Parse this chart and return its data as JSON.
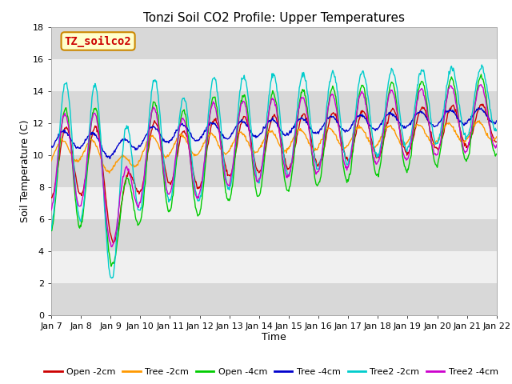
{
  "title": "Tonzi Soil CO2 Profile: Upper Temperatures",
  "xlabel": "Time",
  "ylabel": "Soil Temperature (C)",
  "annotation": "TZ_soilco2",
  "ylim": [
    0,
    18
  ],
  "yticks": [
    0,
    2,
    4,
    6,
    8,
    10,
    12,
    14,
    16,
    18
  ],
  "xtick_labels": [
    "Jan 7",
    "Jan 8",
    "Jan 9",
    "Jan 10",
    "Jan 11",
    "Jan 12",
    "Jan 13",
    "Jan 14",
    "Jan 15",
    "Jan 16",
    "Jan 17",
    "Jan 18",
    "Jan 19",
    "Jan 20",
    "Jan 21",
    "Jan 22"
  ],
  "series_colors": {
    "Open -2cm": "#cc0000",
    "Tree -2cm": "#ff9900",
    "Open -4cm": "#00cc00",
    "Tree -4cm": "#0000cc",
    "Tree2 -2cm": "#00cccc",
    "Tree2 -4cm": "#cc00cc"
  },
  "background_color": "#ffffff",
  "plot_bg_light": "#f0f0f0",
  "plot_bg_dark": "#d8d8d8",
  "title_fontsize": 11,
  "label_fontsize": 9,
  "tick_fontsize": 8,
  "annotation_fontsize": 10,
  "line_width": 1.0
}
